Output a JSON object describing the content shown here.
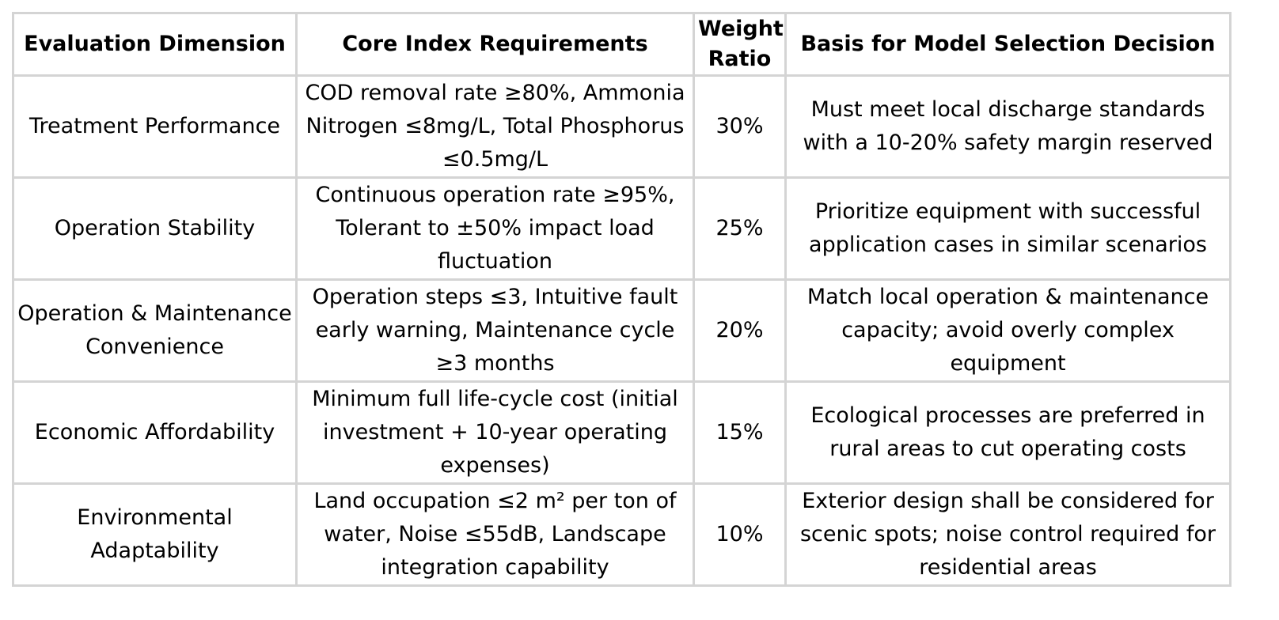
{
  "table": {
    "headers": [
      "Evaluation Dimension",
      "Core Index Requirements",
      "Weight Ratio",
      "Basis for Model Selection Decision"
    ],
    "rows": [
      {
        "dimension": "Treatment Performance",
        "requirements": "COD removal rate ≥80%, Ammonia Nitrogen ≤8mg/L, Total Phosphorus ≤0.5mg/L",
        "weight": "30%",
        "basis": "Must meet local discharge standards with a 10-20% safety margin reserved"
      },
      {
        "dimension": "Operation Stability",
        "requirements": "Continuous operation rate ≥95%, Tolerant to ±50% impact load fluctuation",
        "weight": "25%",
        "basis": "Prioritize equipment with successful application cases in similar scenarios"
      },
      {
        "dimension": "Operation & Maintenance Convenience",
        "requirements": "Operation steps ≤3, Intuitive fault early warning, Maintenance cycle ≥3 months",
        "weight": "20%",
        "basis": "Match local operation & maintenance capacity; avoid overly complex equipment"
      },
      {
        "dimension": "Economic Affordability",
        "requirements": "Minimum full life-cycle cost (initial investment + 10-year operating expenses)",
        "weight": "15%",
        "basis": "Ecological processes are preferred in rural areas to cut operating costs"
      },
      {
        "dimension": "Environmental Adaptability",
        "requirements": "Land occupation ≤2 m² per ton of water, Noise ≤55dB, Landscape integration capability",
        "weight": "10%",
        "basis": "Exterior design shall be considered for scenic spots; noise control required for residential areas"
      }
    ]
  }
}
